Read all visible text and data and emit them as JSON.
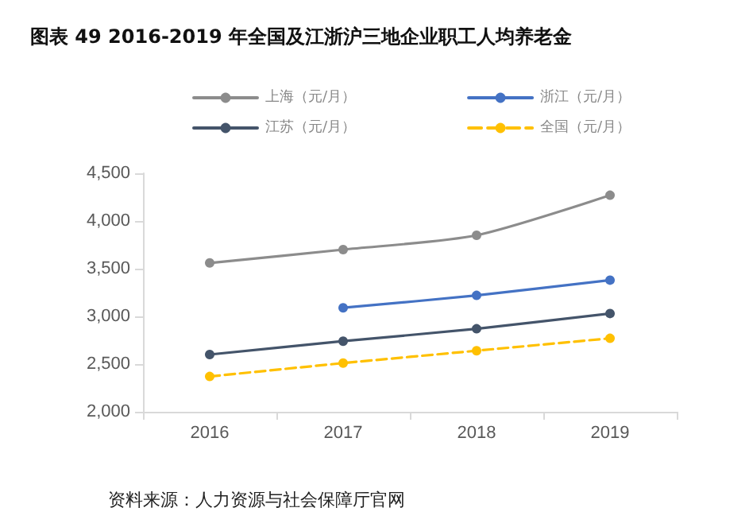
{
  "chart_data": {
    "type": "line",
    "title": "图表 49 2016-2019 年全国及江浙沪三地企业职工人均养老金",
    "categories": [
      "2016",
      "2017",
      "2018",
      "2019"
    ],
    "series": [
      {
        "name": "上海（元/月）",
        "color": "#8c8c8c",
        "values": [
          3560,
          3700,
          3850,
          4270
        ]
      },
      {
        "name": "浙江（元/月）",
        "color": "#4472c4",
        "values": [
          null,
          3090,
          3220,
          3380
        ]
      },
      {
        "name": "江苏（元/月）",
        "color": "#44546a",
        "values": [
          2600,
          2740,
          2870,
          3030
        ]
      },
      {
        "name": "全国（元/月）",
        "color": "#ffc000",
        "values": [
          2370,
          2510,
          2640,
          2770
        ],
        "line_style": "dashed"
      }
    ],
    "ylim": [
      2000,
      4500
    ],
    "yticks": [
      {
        "value": 2000,
        "label": "2,000"
      },
      {
        "value": 2500,
        "label": "2,500"
      },
      {
        "value": 3000,
        "label": "3,000"
      },
      {
        "value": 3500,
        "label": "3,500"
      },
      {
        "value": 4000,
        "label": "4,000"
      },
      {
        "value": 4500,
        "label": "4,500"
      }
    ],
    "grid": false,
    "legend": "top",
    "marker": "circle",
    "line_style": "solid",
    "annotations": [
      "资料来源：人力资源与社会保障厅官网"
    ]
  }
}
